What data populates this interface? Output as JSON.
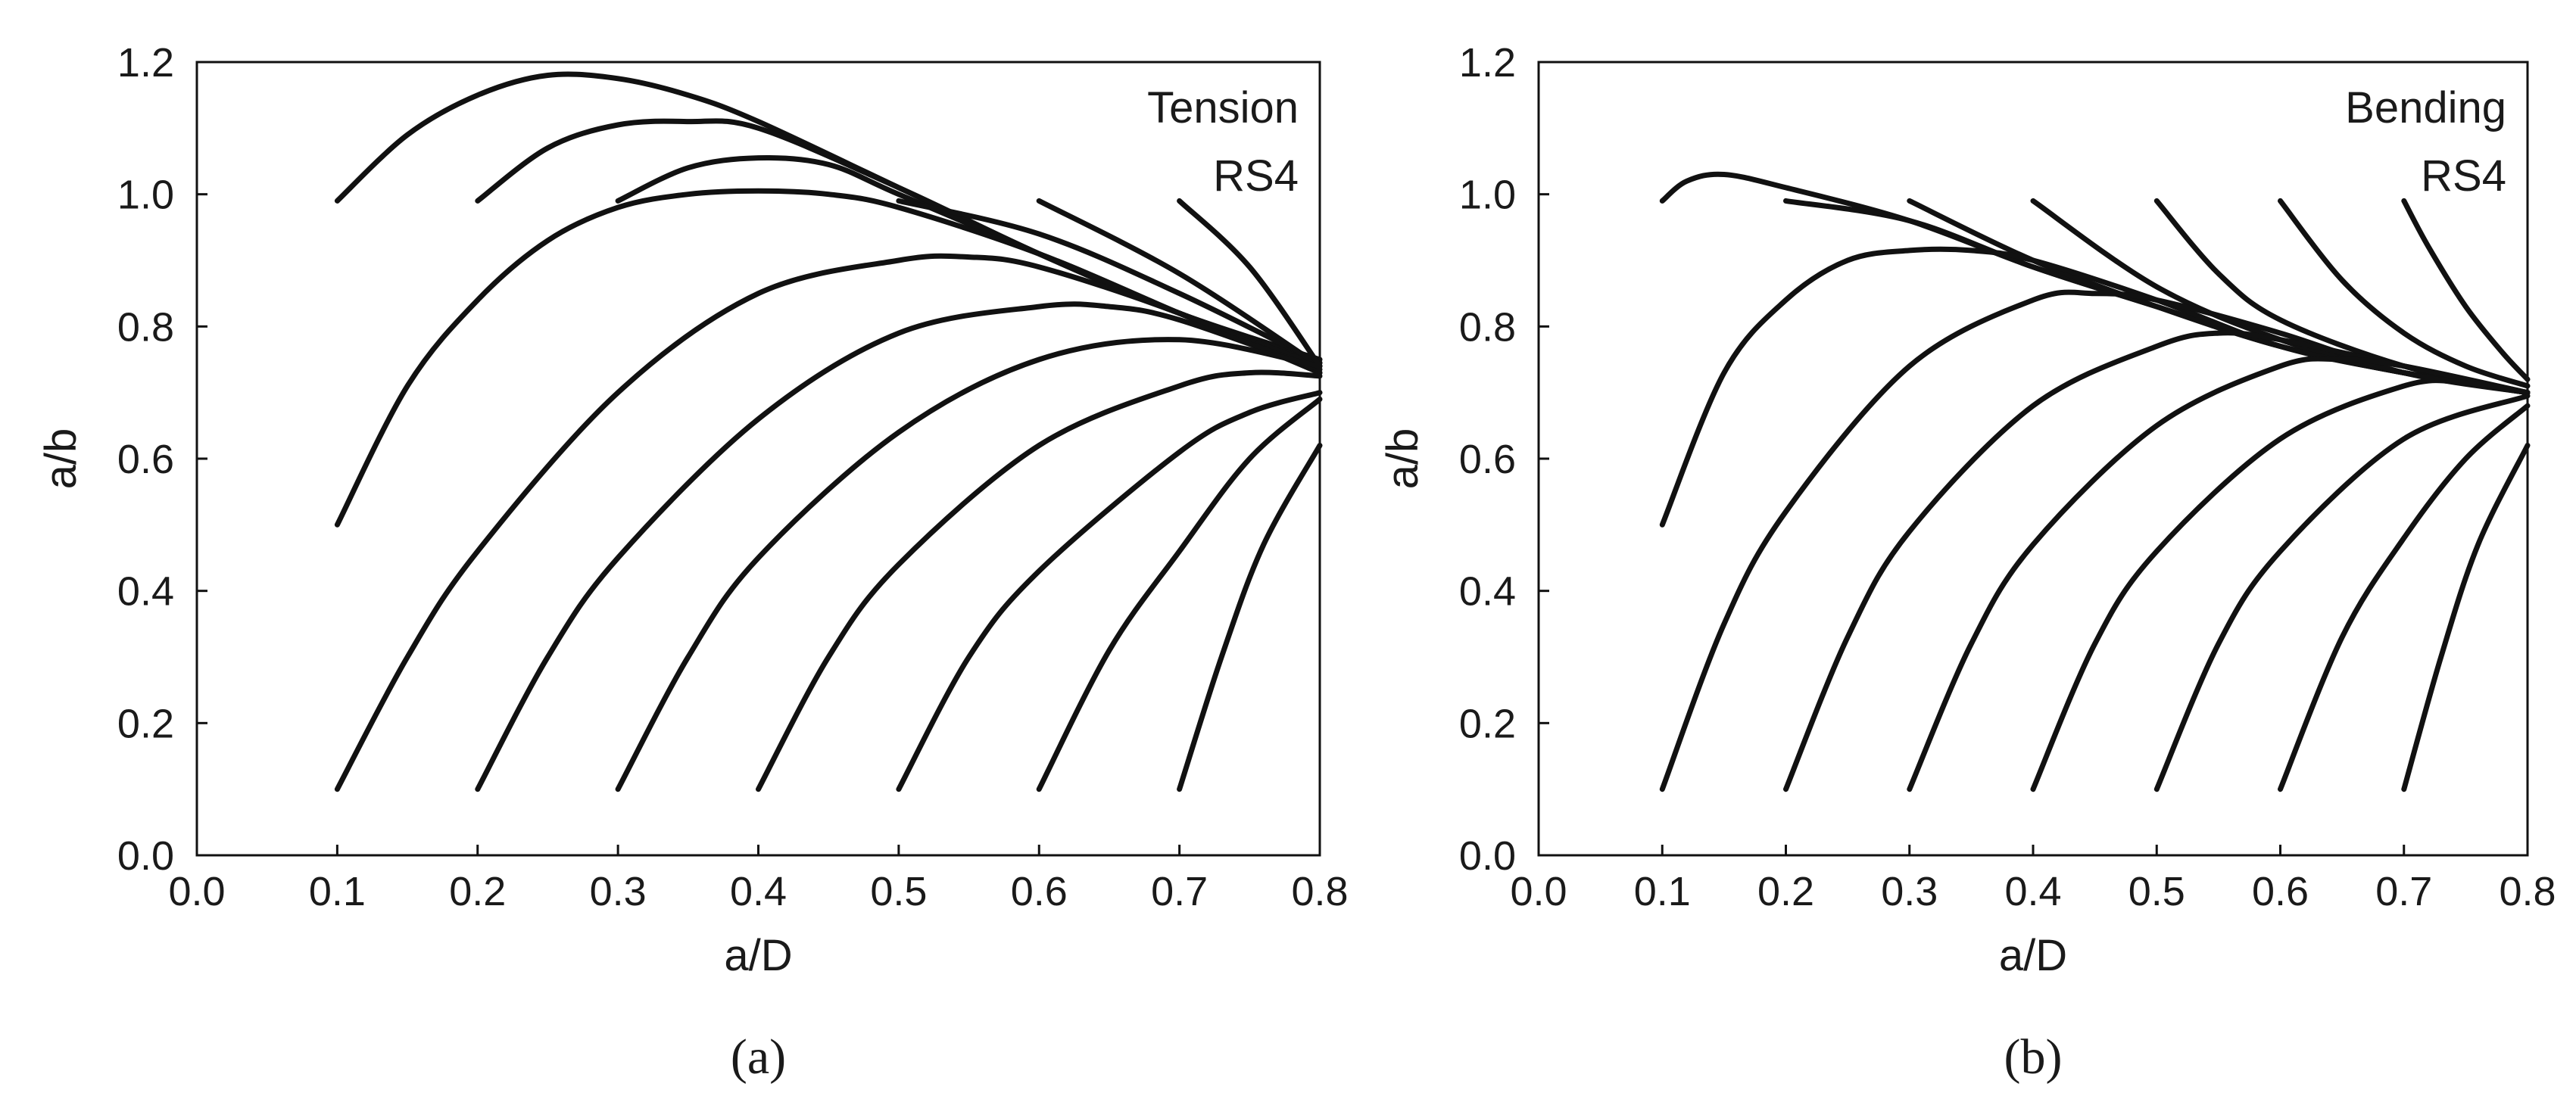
{
  "chart_data": [
    {
      "type": "line",
      "panel_label": "(a)",
      "annotation": [
        "Tension",
        "RS4"
      ],
      "xlabel": "a/D",
      "ylabel": "a/b",
      "xlim": [
        0.0,
        0.8
      ],
      "ylim": [
        0.0,
        1.2
      ],
      "xticks": [
        "0.0",
        "0.1",
        "0.2",
        "0.3",
        "0.4",
        "0.5",
        "0.6",
        "0.7",
        "0.8"
      ],
      "yticks": [
        "0.0",
        "0.2",
        "0.4",
        "0.6",
        "0.8",
        "1.0",
        "1.2"
      ],
      "grid": false,
      "series": [
        {
          "x": [
            0.1,
            0.15,
            0.2,
            0.25,
            0.3,
            0.35,
            0.4,
            0.5,
            0.6,
            0.7,
            0.8
          ],
          "y": [
            0.99,
            1.09,
            1.15,
            1.18,
            1.175,
            1.15,
            1.11,
            1.01,
            0.91,
            0.82,
            0.75
          ]
        },
        {
          "x": [
            0.2,
            0.25,
            0.3,
            0.35,
            0.4,
            0.5,
            0.6,
            0.7,
            0.8
          ],
          "y": [
            0.99,
            1.07,
            1.105,
            1.11,
            1.1,
            1.01,
            0.91,
            0.82,
            0.745
          ]
        },
        {
          "x": [
            0.3,
            0.35,
            0.4,
            0.45,
            0.5,
            0.6,
            0.7,
            0.8
          ],
          "y": [
            0.99,
            1.04,
            1.055,
            1.045,
            1.0,
            0.91,
            0.82,
            0.74
          ]
        },
        {
          "x": [
            0.5,
            0.6,
            0.7,
            0.8
          ],
          "y": [
            0.99,
            0.94,
            0.85,
            0.745
          ]
        },
        {
          "x": [
            0.6,
            0.7,
            0.8
          ],
          "y": [
            0.99,
            0.88,
            0.74
          ]
        },
        {
          "x": [
            0.7,
            0.75,
            0.8
          ],
          "y": [
            0.99,
            0.89,
            0.74
          ]
        },
        {
          "x": [
            0.1,
            0.15,
            0.2,
            0.25,
            0.3,
            0.35,
            0.4,
            0.45,
            0.5,
            0.6,
            0.7,
            0.8
          ],
          "y": [
            0.5,
            0.71,
            0.84,
            0.93,
            0.98,
            1.0,
            1.005,
            1.0,
            0.98,
            0.91,
            0.82,
            0.73
          ]
        },
        {
          "x": [
            0.1,
            0.15,
            0.2,
            0.3,
            0.4,
            0.5,
            0.55,
            0.6,
            0.7,
            0.8
          ],
          "y": [
            0.1,
            0.3,
            0.46,
            0.7,
            0.85,
            0.9,
            0.905,
            0.89,
            0.82,
            0.73
          ]
        },
        {
          "x": [
            0.2,
            0.25,
            0.3,
            0.4,
            0.5,
            0.6,
            0.65,
            0.7,
            0.8
          ],
          "y": [
            0.1,
            0.3,
            0.45,
            0.66,
            0.79,
            0.83,
            0.83,
            0.81,
            0.735
          ]
        },
        {
          "x": [
            0.3,
            0.35,
            0.4,
            0.5,
            0.6,
            0.7,
            0.8
          ],
          "y": [
            0.1,
            0.3,
            0.45,
            0.64,
            0.75,
            0.78,
            0.74
          ]
        },
        {
          "x": [
            0.4,
            0.45,
            0.5,
            0.6,
            0.7,
            0.75,
            0.8
          ],
          "y": [
            0.1,
            0.3,
            0.44,
            0.62,
            0.71,
            0.73,
            0.725
          ]
        },
        {
          "x": [
            0.5,
            0.55,
            0.6,
            0.7,
            0.75,
            0.8
          ],
          "y": [
            0.1,
            0.3,
            0.43,
            0.61,
            0.67,
            0.7
          ]
        },
        {
          "x": [
            0.6,
            0.65,
            0.7,
            0.75,
            0.8
          ],
          "y": [
            0.1,
            0.31,
            0.46,
            0.6,
            0.69
          ]
        },
        {
          "x": [
            0.7,
            0.73,
            0.76,
            0.8
          ],
          "y": [
            0.1,
            0.3,
            0.47,
            0.62
          ]
        }
      ]
    },
    {
      "type": "line",
      "panel_label": "(b)",
      "annotation": [
        "Bending",
        "RS4"
      ],
      "xlabel": "a/D",
      "ylabel": "a/b",
      "xlim": [
        0.0,
        0.8
      ],
      "ylim": [
        0.0,
        1.2
      ],
      "xticks": [
        "0.0",
        "0.1",
        "0.2",
        "0.3",
        "0.4",
        "0.5",
        "0.6",
        "0.7",
        "0.8"
      ],
      "yticks": [
        "0.0",
        "0.2",
        "0.4",
        "0.6",
        "0.8",
        "1.0",
        "1.2"
      ],
      "grid": false,
      "series": [
        {
          "x": [
            0.1,
            0.12,
            0.15,
            0.2,
            0.3,
            0.4,
            0.5,
            0.6,
            0.7,
            0.8
          ],
          "y": [
            0.99,
            1.02,
            1.03,
            1.01,
            0.96,
            0.89,
            0.83,
            0.77,
            0.73,
            0.7
          ]
        },
        {
          "x": [
            0.2,
            0.3,
            0.4,
            0.5,
            0.6,
            0.7,
            0.8
          ],
          "y": [
            0.99,
            0.96,
            0.89,
            0.83,
            0.77,
            0.73,
            0.7
          ]
        },
        {
          "x": [
            0.3,
            0.4,
            0.5,
            0.6,
            0.7,
            0.8
          ],
          "y": [
            0.99,
            0.9,
            0.83,
            0.77,
            0.73,
            0.7
          ]
        },
        {
          "x": [
            0.4,
            0.5,
            0.6,
            0.7,
            0.8
          ],
          "y": [
            0.99,
            0.86,
            0.78,
            0.73,
            0.7
          ]
        },
        {
          "x": [
            0.5,
            0.55,
            0.6,
            0.7,
            0.8
          ],
          "y": [
            0.99,
            0.88,
            0.81,
            0.74,
            0.7
          ]
        },
        {
          "x": [
            0.6,
            0.65,
            0.7,
            0.75,
            0.8
          ],
          "y": [
            0.99,
            0.87,
            0.79,
            0.74,
            0.71
          ]
        },
        {
          "x": [
            0.7,
            0.72,
            0.75,
            0.78,
            0.8
          ],
          "y": [
            0.99,
            0.92,
            0.83,
            0.76,
            0.72
          ]
        },
        {
          "x": [
            0.1,
            0.15,
            0.2,
            0.25,
            0.3,
            0.35,
            0.4,
            0.5,
            0.6,
            0.7,
            0.8
          ],
          "y": [
            0.5,
            0.73,
            0.84,
            0.9,
            0.915,
            0.915,
            0.9,
            0.84,
            0.77,
            0.73,
            0.7
          ]
        },
        {
          "x": [
            0.1,
            0.15,
            0.2,
            0.3,
            0.4,
            0.45,
            0.5,
            0.6,
            0.7,
            0.8
          ],
          "y": [
            0.1,
            0.35,
            0.52,
            0.74,
            0.84,
            0.85,
            0.84,
            0.79,
            0.73,
            0.7
          ]
        },
        {
          "x": [
            0.2,
            0.25,
            0.3,
            0.4,
            0.5,
            0.55,
            0.6,
            0.7,
            0.8
          ],
          "y": [
            0.1,
            0.33,
            0.49,
            0.68,
            0.77,
            0.79,
            0.78,
            0.74,
            0.7
          ]
        },
        {
          "x": [
            0.3,
            0.35,
            0.4,
            0.5,
            0.6,
            0.65,
            0.7,
            0.8
          ],
          "y": [
            0.1,
            0.32,
            0.47,
            0.65,
            0.74,
            0.75,
            0.74,
            0.7
          ]
        },
        {
          "x": [
            0.4,
            0.45,
            0.5,
            0.6,
            0.7,
            0.75,
            0.8
          ],
          "y": [
            0.1,
            0.32,
            0.46,
            0.63,
            0.71,
            0.715,
            0.7
          ]
        },
        {
          "x": [
            0.5,
            0.55,
            0.6,
            0.7,
            0.8
          ],
          "y": [
            0.1,
            0.32,
            0.46,
            0.63,
            0.695
          ]
        },
        {
          "x": [
            0.6,
            0.65,
            0.7,
            0.75,
            0.8
          ],
          "y": [
            0.1,
            0.33,
            0.48,
            0.6,
            0.68
          ]
        },
        {
          "x": [
            0.7,
            0.73,
            0.76,
            0.8
          ],
          "y": [
            0.1,
            0.3,
            0.47,
            0.62
          ]
        }
      ]
    }
  ]
}
